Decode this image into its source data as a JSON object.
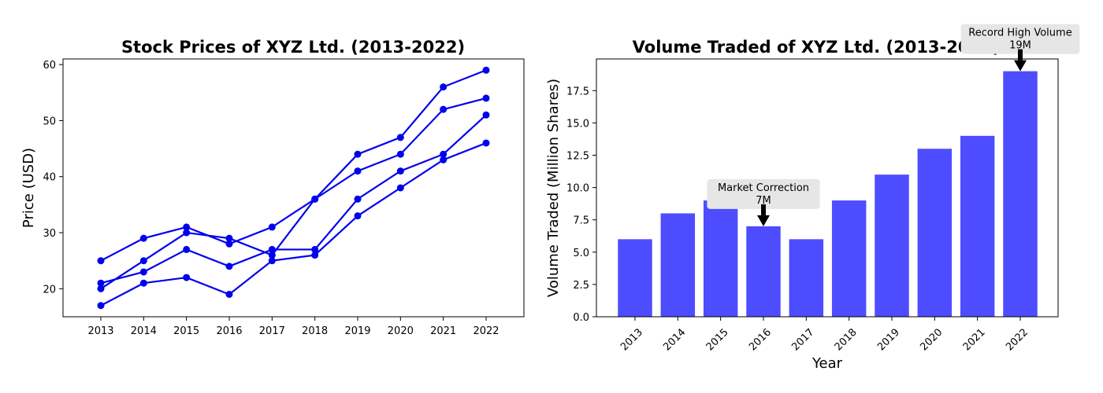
{
  "chart_data": [
    {
      "type": "line",
      "title": "Stock Prices of XYZ Ltd. (2013-2022)",
      "xlabel": "",
      "ylabel": "Price (USD)",
      "x": [
        "2013",
        "2014",
        "2015",
        "2016",
        "2017",
        "2018",
        "2019",
        "2020",
        "2021",
        "2022"
      ],
      "ylim": [
        15,
        61
      ],
      "yticks": [
        20,
        30,
        40,
        50,
        60
      ],
      "grid": false,
      "color": "#0000ee",
      "series": [
        {
          "values": [
            25,
            29,
            31,
            28,
            31,
            36,
            44,
            47,
            56,
            59
          ]
        },
        {
          "values": [
            20,
            25,
            30,
            29,
            26,
            36,
            41,
            44,
            52,
            54
          ]
        },
        {
          "values": [
            21,
            23,
            27,
            24,
            27,
            27,
            36,
            41,
            44,
            51
          ]
        },
        {
          "values": [
            17,
            21,
            22,
            19,
            25,
            26,
            33,
            38,
            43,
            46
          ]
        }
      ]
    },
    {
      "type": "bar",
      "title": "Volume Traded of XYZ Ltd. (2013-2022)",
      "xlabel": "Year",
      "ylabel": "Volume Traded (Million Shares)",
      "categories": [
        "2013",
        "2014",
        "2015",
        "2016",
        "2017",
        "2018",
        "2019",
        "2020",
        "2021",
        "2022"
      ],
      "values": [
        6,
        8,
        9,
        7,
        6,
        9,
        11,
        13,
        14,
        19
      ],
      "ylim": [
        0,
        19.95
      ],
      "yticks": [
        "0.0",
        "2.5",
        "5.0",
        "7.5",
        "10.0",
        "12.5",
        "15.0",
        "17.5"
      ],
      "grid": false,
      "color": "#4d4dff",
      "annotations": [
        {
          "category": "2016",
          "value": 7,
          "text_line1": "Market Correction",
          "text_line2": "7M"
        },
        {
          "category": "2022",
          "value": 19,
          "text_line1": "Record High Volume",
          "text_line2": "19M"
        }
      ]
    }
  ]
}
